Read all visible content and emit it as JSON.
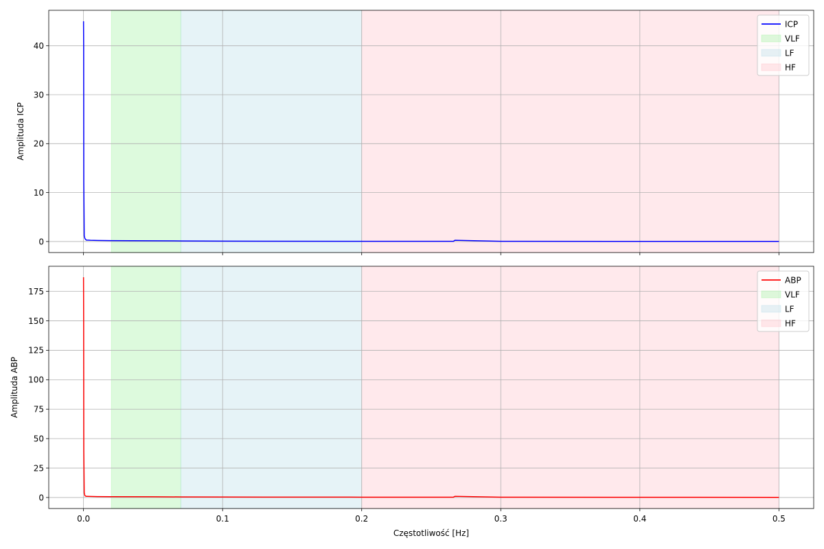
{
  "chart_data": [
    {
      "type": "line",
      "ylabel": "Amplituda ICP",
      "xlabel": "",
      "xlim": [
        -0.025,
        0.525
      ],
      "ylim": [
        -2.25,
        47.25
      ],
      "xticks": [
        0.0,
        0.1,
        0.2,
        0.3,
        0.4,
        0.5
      ],
      "xtick_labels_visible": false,
      "yticks": [
        0,
        10,
        20,
        30,
        40
      ],
      "ytick_labels": [
        "0",
        "10",
        "20",
        "30",
        "40"
      ],
      "grid": true,
      "legend_position": "top-right",
      "series": [
        {
          "name": "ICP",
          "color": "#0000ff",
          "x": [
            0.0,
            0.0001,
            0.0002,
            0.0005,
            0.001,
            0.002,
            0.005,
            0.01,
            0.02,
            0.05,
            0.07,
            0.1,
            0.2,
            0.266,
            0.267,
            0.3,
            0.4,
            0.5
          ],
          "y": [
            45.0,
            40.0,
            12.0,
            1.2,
            0.6,
            0.3,
            0.25,
            0.22,
            0.18,
            0.15,
            0.12,
            0.08,
            0.05,
            0.05,
            0.25,
            0.04,
            0.03,
            0.02
          ]
        }
      ],
      "bands": [
        {
          "name": "VLF",
          "range": [
            0.02,
            0.07
          ],
          "color": "#90ee90"
        },
        {
          "name": "LF",
          "range": [
            0.07,
            0.2
          ],
          "color": "#add8e6"
        },
        {
          "name": "HF",
          "range": [
            0.2,
            0.5
          ],
          "color": "#ffb6c1"
        }
      ]
    },
    {
      "type": "line",
      "ylabel": "Amplituda ABP",
      "xlabel": "Częstotliwość [Hz]",
      "xlim": [
        -0.025,
        0.525
      ],
      "ylim": [
        -9.35,
        196.35
      ],
      "xticks": [
        0.0,
        0.1,
        0.2,
        0.3,
        0.4,
        0.5
      ],
      "xtick_labels": [
        "0.0",
        "0.1",
        "0.2",
        "0.3",
        "0.4",
        "0.5"
      ],
      "xtick_labels_visible": true,
      "yticks": [
        0,
        25,
        50,
        75,
        100,
        125,
        150,
        175
      ],
      "ytick_labels": [
        "0",
        "25",
        "50",
        "75",
        "100",
        "125",
        "150",
        "175"
      ],
      "grid": true,
      "legend_position": "top-right",
      "series": [
        {
          "name": "ABP",
          "color": "#ff0000",
          "x": [
            0.0,
            0.0001,
            0.0002,
            0.0005,
            0.001,
            0.002,
            0.005,
            0.01,
            0.02,
            0.05,
            0.07,
            0.1,
            0.2,
            0.266,
            0.267,
            0.3,
            0.4,
            0.5
          ],
          "y": [
            187.0,
            150.0,
            40.0,
            4.0,
            1.5,
            1.0,
            0.9,
            0.8,
            0.7,
            0.6,
            0.5,
            0.4,
            0.3,
            0.3,
            1.0,
            0.25,
            0.2,
            0.15
          ]
        }
      ],
      "bands": [
        {
          "name": "VLF",
          "range": [
            0.02,
            0.07
          ],
          "color": "#90ee90"
        },
        {
          "name": "LF",
          "range": [
            0.07,
            0.2
          ],
          "color": "#add8e6"
        },
        {
          "name": "HF",
          "range": [
            0.2,
            0.5
          ],
          "color": "#ffb6c1"
        }
      ]
    }
  ]
}
